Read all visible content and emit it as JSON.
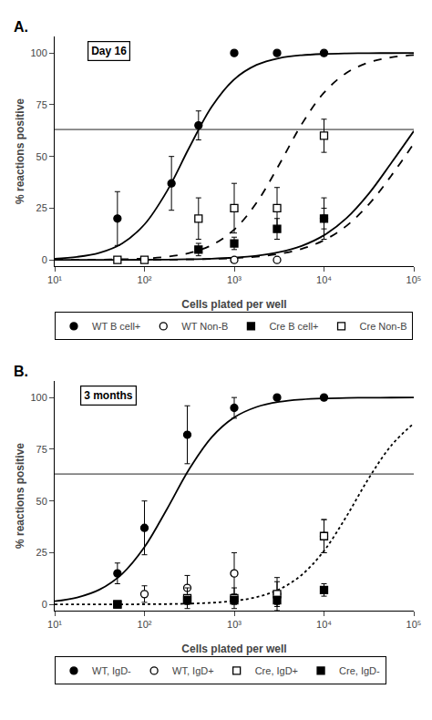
{
  "chart_data": [
    {
      "type": "scatter",
      "title": "Day 16",
      "annotations": [
        "A."
      ],
      "xlabel": "Cells plated per well",
      "ylabel": "% reactions positive",
      "log": "x",
      "grid": false,
      "legend": "bottom",
      "xlim": [
        10,
        100000
      ],
      "ylim": [
        -3,
        108
      ],
      "xticks": [
        {
          "value": 10,
          "label": "10¹"
        },
        {
          "value": 100,
          "label": "10²"
        },
        {
          "value": 1000,
          "label": "10³"
        },
        {
          "value": 10000,
          "label": "10⁴"
        },
        {
          "value": 100000,
          "label": "10⁵"
        }
      ],
      "yticks": [
        0,
        25,
        50,
        75,
        100
      ],
      "series": [
        {
          "type": "line",
          "color": "gray",
          "line_style": "solid",
          "x": [
            10,
            100000
          ],
          "values": [
            63,
            63
          ]
        },
        {
          "type": "scatter",
          "name": "WT B cell+",
          "marker": "circle",
          "color": "black",
          "x": [
            50,
            200,
            400,
            1000,
            3000,
            10000
          ],
          "values": [
            20,
            37,
            65,
            100,
            100,
            100
          ],
          "yerr": [
            13,
            13,
            7,
            0,
            0,
            0
          ]
        },
        {
          "type": "line",
          "color": "black",
          "line_style": "solid",
          "x": [
            10,
            17.78,
            31.62,
            56.23,
            100,
            177.8,
            316.2,
            562.3,
            1000,
            1778,
            3162,
            5623,
            10000,
            17783,
            31623,
            56234,
            100000
          ],
          "values": [
            0.62,
            1.48,
            3.47,
            7.94,
            17.15,
            33.18,
            54.36,
            74.08,
            87.27,
            94.27,
            97.53,
            98.95,
            99.56,
            99.82,
            99.92,
            99.97,
            99.99
          ]
        },
        {
          "type": "scatter",
          "name": "WT Non-B",
          "marker": "circle-open",
          "color": "black",
          "x": [
            1000,
            3000,
            10000
          ],
          "values": [
            0,
            0,
            20
          ],
          "yerr": [
            0,
            0,
            10
          ]
        },
        {
          "type": "line",
          "color": "black",
          "line_style": "solid",
          "x": [
            10,
            17.78,
            31.62,
            56.23,
            100,
            177.8,
            316.2,
            562.3,
            1000,
            1778,
            3162,
            5623,
            10000,
            17783,
            31623,
            56234,
            100000
          ],
          "values": [
            0.01,
            0.01,
            0.03,
            0.05,
            0.09,
            0.17,
            0.32,
            0.59,
            1.1,
            2.03,
            3.73,
            6.76,
            11.92,
            20.18,
            32.08,
            46.88,
            62.25
          ]
        },
        {
          "type": "scatter",
          "name": "Cre B cell+",
          "marker": "square",
          "color": "black",
          "x": [
            400,
            1000,
            3000,
            10000
          ],
          "values": [
            5,
            8,
            15,
            20
          ],
          "yerr": [
            3,
            3,
            5,
            5
          ]
        },
        {
          "type": "line",
          "color": "black",
          "line_style": "dashed",
          "x": [
            10,
            17.78,
            31.62,
            56.23,
            100,
            177.8,
            316.2,
            562.3,
            1000,
            1778,
            3162,
            5623,
            10000,
            17783,
            31623,
            56234,
            100000
          ],
          "values": [
            0.01,
            0.01,
            0.02,
            0.04,
            0.07,
            0.13,
            0.25,
            0.46,
            0.86,
            1.59,
            2.93,
            5.34,
            9.53,
            16.45,
            26.89,
            40.73,
            56.22
          ]
        },
        {
          "type": "scatter",
          "name": "Cre Non-B",
          "marker": "square-open",
          "color": "black",
          "x": [
            50,
            100,
            400,
            1000,
            3000,
            10000
          ],
          "values": [
            0,
            0,
            20,
            25,
            25,
            60
          ],
          "yerr": [
            1,
            1,
            10,
            12,
            10,
            8
          ]
        },
        {
          "type": "line",
          "color": "black",
          "line_style": "dashed",
          "x": [
            10,
            17.78,
            31.62,
            56.23,
            100,
            177.8,
            316.2,
            562.3,
            1000,
            1778,
            3162,
            5623,
            10000,
            17783,
            31623,
            56234,
            100000
          ],
          "values": [
            0.03,
            0.06,
            0.14,
            0.31,
            0.7,
            1.54,
            3.36,
            7.18,
            14.68,
            27.69,
            46.01,
            65.48,
            80.85,
            90.38,
            95.44,
            97.9,
            99.04
          ]
        }
      ]
    },
    {
      "type": "scatter",
      "title": "3 months",
      "annotations": [
        "B."
      ],
      "xlabel": "Cells plated per well",
      "ylabel": "% reactions positive",
      "log": "x",
      "grid": false,
      "legend": "bottom",
      "xlim": [
        10,
        100000
      ],
      "ylim": [
        -3,
        108
      ],
      "xticks": [
        {
          "value": 10,
          "label": "10¹"
        },
        {
          "value": 100,
          "label": "10²"
        },
        {
          "value": 1000,
          "label": "10³"
        },
        {
          "value": 10000,
          "label": "10⁴"
        },
        {
          "value": 100000,
          "label": "10⁵"
        }
      ],
      "yticks": [
        0,
        25,
        50,
        75,
        100
      ],
      "series": [
        {
          "type": "line",
          "color": "gray",
          "line_style": "solid",
          "x": [
            10,
            100000
          ],
          "values": [
            63,
            63
          ]
        },
        {
          "type": "scatter",
          "name": "WT, IgD-",
          "marker": "circle",
          "color": "black",
          "x": [
            50,
            100,
            300,
            1000,
            3000,
            10000
          ],
          "values": [
            15,
            37,
            82,
            95,
            100,
            100
          ],
          "yerr": [
            5,
            13,
            14,
            5,
            0,
            0
          ]
        },
        {
          "type": "line",
          "color": "black",
          "line_style": "solid",
          "x": [
            10,
            17.78,
            31.62,
            56.23,
            100,
            177.8,
            316.2,
            562.3,
            1000,
            1778,
            3162,
            5623,
            10000,
            17783,
            31623,
            56234,
            100000
          ],
          "values": [
            1.54,
            3.36,
            7.18,
            14.68,
            27.69,
            46.01,
            65.48,
            80.85,
            90.38,
            95.44,
            97.9,
            99.04,
            99.57,
            99.81,
            99.91,
            99.96,
            99.98
          ]
        },
        {
          "type": "scatter",
          "name": "WT, IgD+",
          "marker": "circle-open",
          "color": "black",
          "x": [
            100,
            300,
            1000,
            3000,
            10000
          ],
          "values": [
            5,
            8,
            15,
            5,
            33
          ],
          "yerr": [
            4,
            6,
            10,
            6,
            8
          ]
        },
        {
          "type": "scatter",
          "name": "Cre, IgD+",
          "marker": "square-open",
          "color": "black",
          "x": [
            50,
            300,
            1000,
            3000,
            10000
          ],
          "values": [
            0,
            3,
            3,
            5,
            33
          ],
          "yerr": [
            1,
            5,
            5,
            8,
            8
          ]
        },
        {
          "type": "scatter",
          "name": "Cre, IgD-",
          "marker": "square",
          "color": "black",
          "x": [
            50,
            300,
            1000,
            3000,
            10000
          ],
          "values": [
            0,
            2,
            2,
            2,
            7
          ],
          "yerr": [
            0,
            2,
            2,
            2,
            3
          ]
        },
        {
          "type": "line",
          "color": "black",
          "line_style": "dotted",
          "x": [
            10,
            17.78,
            31.62,
            56.23,
            100,
            177.8,
            316.2,
            562.3,
            1000,
            1778,
            3162,
            5623,
            10000,
            17783,
            31623,
            56234,
            100000
          ],
          "values": [
            0,
            0.01,
            0.02,
            0.04,
            0.09,
            0.18,
            0.39,
            0.82,
            1.71,
            3.56,
            7.24,
            14.19,
            25.92,
            42.56,
            61.07,
            76.85,
            87.54
          ]
        }
      ]
    }
  ]
}
